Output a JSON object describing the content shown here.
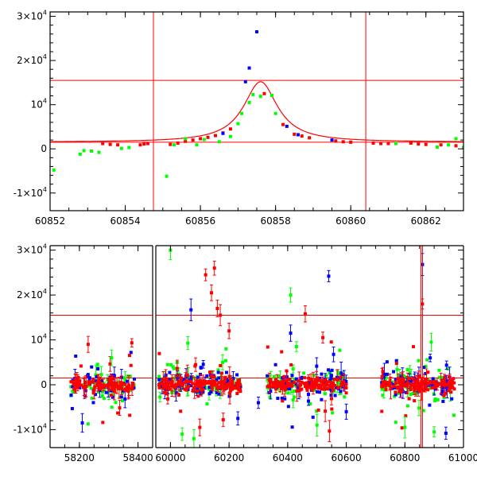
{
  "chart_data": [
    {
      "type": "scatter",
      "title": "",
      "xlabel": "",
      "ylabel": "",
      "xlim": [
        60852,
        60863
      ],
      "ylim": [
        -14000,
        31000
      ],
      "x_ticks": [
        {
          "value": 60852,
          "label": "60852"
        },
        {
          "value": 60854,
          "label": "60854"
        },
        {
          "value": 60856,
          "label": "60856"
        },
        {
          "value": 60858,
          "label": "60858"
        },
        {
          "value": 60860,
          "label": "60860"
        },
        {
          "value": 60862,
          "label": "60862"
        }
      ],
      "y_ticks": [
        {
          "value": -10000,
          "base": "-1×10",
          "exp": "4"
        },
        {
          "value": 0,
          "base": "0",
          "exp": ""
        },
        {
          "value": 10000,
          "base": "10",
          "exp": "4"
        },
        {
          "value": 20000,
          "base": "2×10",
          "exp": "4"
        },
        {
          "value": 30000,
          "base": "3×10",
          "exp": "4"
        }
      ],
      "hlines": [
        1500,
        15500
      ],
      "vlines": [
        60854.75,
        60860.4
      ],
      "model_curve": {
        "color": "#ff0000",
        "t0": 60857.6,
        "peak": 15200,
        "base": 1500,
        "width": 0.55
      },
      "series": [
        {
          "name": "red",
          "color": "#ff0000",
          "points": [
            [
              60853.4,
              1200
            ],
            [
              60853.6,
              1000
            ],
            [
              60853.8,
              900
            ],
            [
              60854.4,
              900
            ],
            [
              60854.5,
              1100
            ],
            [
              60854.6,
              1200
            ],
            [
              60855.2,
              1000
            ],
            [
              60855.4,
              1300
            ],
            [
              60855.6,
              1700
            ],
            [
              60855.8,
              2000
            ],
            [
              60856.0,
              2300
            ],
            [
              60856.2,
              2600
            ],
            [
              60856.4,
              3000
            ],
            [
              60856.6,
              3600
            ],
            [
              60856.8,
              4500
            ],
            [
              60857.7,
              12500
            ],
            [
              60858.2,
              5500
            ],
            [
              60858.5,
              3300
            ],
            [
              60858.7,
              2900
            ],
            [
              60858.9,
              2500
            ],
            [
              60859.6,
              1800
            ],
            [
              60859.8,
              1600
            ],
            [
              60860.0,
              1500
            ],
            [
              60860.6,
              1300
            ],
            [
              60860.8,
              1200
            ],
            [
              60861.0,
              1200
            ],
            [
              60861.6,
              1300
            ],
            [
              60861.8,
              1100
            ],
            [
              60862.0,
              1000
            ],
            [
              60862.4,
              900
            ],
            [
              60862.8,
              700
            ]
          ]
        },
        {
          "name": "blue",
          "color": "#0000ff",
          "points": [
            [
              60856.6,
              3500
            ],
            [
              60857.2,
              15200
            ],
            [
              60857.3,
              18300
            ],
            [
              60857.5,
              26500
            ],
            [
              60858.3,
              5100
            ],
            [
              60858.6,
              3200
            ],
            [
              60859.5,
              2000
            ]
          ]
        },
        {
          "name": "green",
          "color": "#00ff00",
          "points": [
            [
              60852.1,
              -4800
            ],
            [
              60852.8,
              -1200
            ],
            [
              60852.9,
              -400
            ],
            [
              60853.1,
              -500
            ],
            [
              60853.3,
              -800
            ],
            [
              60853.9,
              100
            ],
            [
              60854.1,
              300
            ],
            [
              60855.1,
              -6200
            ],
            [
              60855.3,
              900
            ],
            [
              60855.6,
              2300
            ],
            [
              60855.9,
              900
            ],
            [
              60856.1,
              2100
            ],
            [
              60856.5,
              1600
            ],
            [
              60856.8,
              2800
            ],
            [
              60857.0,
              5700
            ],
            [
              60857.1,
              8000
            ],
            [
              60857.3,
              10500
            ],
            [
              60857.4,
              12300
            ],
            [
              60857.6,
              11900
            ],
            [
              60857.9,
              12100
            ],
            [
              60858.0,
              8000
            ],
            [
              60861.2,
              1200
            ],
            [
              60862.3,
              400
            ],
            [
              60862.6,
              900
            ],
            [
              60862.8,
              2300
            ],
            [
              60863.0,
              300
            ]
          ]
        }
      ]
    },
    {
      "type": "scatter",
      "title": "",
      "xlabel": "",
      "ylabel": "",
      "xlim": [
        58100,
        61000
      ],
      "ylim": [
        -14000,
        31000
      ],
      "x_ticks": [
        {
          "value": 58200,
          "label": "58200"
        },
        {
          "value": 58400,
          "label": "58400"
        },
        {
          "value": 60000,
          "label": "60000"
        },
        {
          "value": 60200,
          "label": "60200"
        },
        {
          "value": 60400,
          "label": "60400"
        },
        {
          "value": 60600,
          "label": "60600"
        },
        {
          "value": 60800,
          "label": "60800"
        },
        {
          "value": 61000,
          "label": "61000"
        }
      ],
      "y_ticks": [
        {
          "value": -10000,
          "base": "-1×10",
          "exp": "4"
        },
        {
          "value": 0,
          "base": "0",
          "exp": ""
        },
        {
          "value": 10000,
          "base": "10",
          "exp": "4"
        },
        {
          "value": 20000,
          "base": "2×10",
          "exp": "4"
        },
        {
          "value": 30000,
          "base": "3×10",
          "exp": "4"
        }
      ],
      "axis_break": {
        "from": 58450,
        "to": 59950
      },
      "hlines": [
        1500,
        15500
      ],
      "vlines": [
        60854.75,
        60860.4
      ],
      "clusters": [
        {
          "x_from": 58170,
          "x_to": 58390,
          "count": 220
        },
        {
          "x_from": 59960,
          "x_to": 60240,
          "count": 320
        },
        {
          "x_from": 60330,
          "x_to": 60600,
          "count": 300
        },
        {
          "x_from": 60720,
          "x_to": 60970,
          "count": 300
        }
      ],
      "series": [
        {
          "name": "red",
          "color": "#ff0000",
          "points": [
            [
              58230,
              9000
            ],
            [
              60120,
              24500
            ],
            [
              60150,
              26000
            ],
            [
              60140,
              20500
            ],
            [
              60160,
              17000
            ],
            [
              60170,
              15500
            ],
            [
              60460,
              15800
            ],
            [
              60860,
              18000
            ],
            [
              60200,
              12000
            ],
            [
              60100,
              -9500
            ],
            [
              60180,
              -7800
            ],
            [
              60520,
              10500
            ]
          ]
        },
        {
          "name": "blue",
          "color": "#0000ff",
          "points": [
            [
              60070,
              16700
            ],
            [
              60540,
              24200
            ],
            [
              60860,
              26800
            ],
            [
              60410,
              11500
            ],
            [
              60230,
              -7500
            ],
            [
              60940,
              -10800
            ],
            [
              58210,
              -8500
            ],
            [
              60300,
              -4000
            ],
            [
              60600,
              -6000
            ]
          ]
        },
        {
          "name": "green",
          "color": "#00ff00",
          "points": [
            [
              60000,
              30000
            ],
            [
              60410,
              20000
            ],
            [
              60080,
              -12000
            ],
            [
              60040,
              -11000
            ],
            [
              60900,
              -10500
            ],
            [
              60800,
              -9500
            ],
            [
              58310,
              6000
            ],
            [
              60430,
              8500
            ],
            [
              60890,
              9500
            ],
            [
              60500,
              -9000
            ]
          ]
        }
      ]
    }
  ]
}
